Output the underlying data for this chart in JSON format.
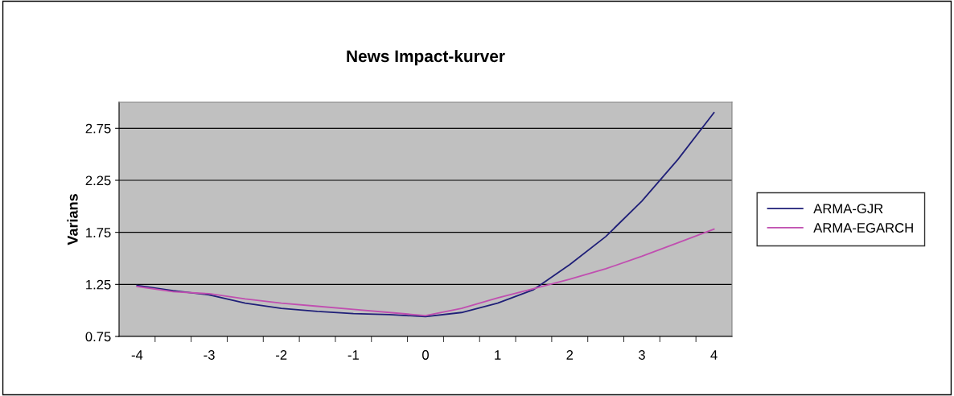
{
  "chart_data": {
    "type": "line",
    "title": "News Impact-kurver",
    "ylabel": "Varians",
    "categories": [
      "-4",
      null,
      "-3",
      null,
      "-2",
      null,
      "-1",
      null,
      "0",
      null,
      "1",
      null,
      "2",
      null,
      "3",
      null,
      "4"
    ],
    "series": [
      {
        "name": "ARMA-GJR",
        "color": "#1f1f78",
        "values": [
          1.24,
          1.19,
          1.15,
          1.07,
          1.02,
          0.99,
          0.97,
          0.96,
          0.94,
          0.98,
          1.07,
          1.2,
          1.44,
          1.71,
          2.05,
          2.45,
          2.9
        ]
      },
      {
        "name": "ARMA-EGARCH",
        "color": "#c04fb0",
        "values": [
          1.23,
          1.18,
          1.16,
          1.11,
          1.07,
          1.04,
          1.01,
          0.98,
          0.95,
          1.02,
          1.12,
          1.21,
          1.3,
          1.4,
          1.52,
          1.65,
          1.78
        ]
      }
    ],
    "ylim": [
      0.75,
      3.0
    ],
    "yticks": [
      0.75,
      1.25,
      1.75,
      2.25,
      2.75
    ],
    "grid": "y",
    "legend": "right",
    "marker": "none",
    "line_style": "solid"
  }
}
